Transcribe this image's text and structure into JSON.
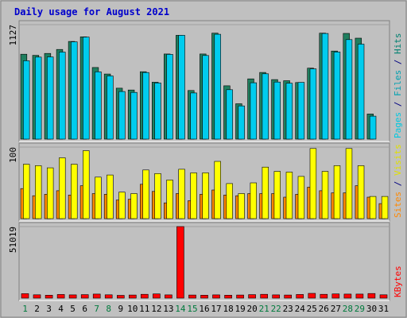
{
  "chart_data": {
    "type": "bar",
    "title": "Daily usage for August 2021",
    "categories": [
      "1",
      "2",
      "3",
      "4",
      "5",
      "6",
      "7",
      "8",
      "9",
      "10",
      "11",
      "12",
      "13",
      "14",
      "15",
      "16",
      "17",
      "18",
      "19",
      "20",
      "21",
      "22",
      "23",
      "24",
      "25",
      "26",
      "27",
      "28",
      "29",
      "30",
      "31"
    ],
    "weekend_days": [
      "1",
      "7",
      "8",
      "14",
      "15",
      "21",
      "22",
      "28",
      "29"
    ],
    "panels": [
      {
        "id": "hits",
        "ymax_label": "1127",
        "ylim": [
          0,
          1127
        ],
        "right_label_parts": [
          {
            "text": "Pages",
            "color": "#00c8e0"
          },
          {
            "text": " / ",
            "color": "#000080"
          },
          {
            "text": "Files",
            "color": "#00a0b0"
          },
          {
            "text": " / ",
            "color": "#000080"
          },
          {
            "text": "Hits",
            "color": "#008070"
          }
        ],
        "series": [
          {
            "name": "Hits",
            "color": "#1f7f5f",
            "values": [
              836,
              825,
              844,
              883,
              962,
              1007,
              705,
              641,
              502,
              484,
              664,
              560,
              838,
              1022,
              479,
              838,
              1043,
              525,
              348,
              593,
              657,
              586,
              575,
              557,
              699,
              1043,
              867,
              1041,
              994,
              247,
              0
            ]
          },
          {
            "name": "Files",
            "color": "#00ccee",
            "values": [
              772,
              808,
              809,
              857,
              958,
              1005,
              663,
              622,
              469,
              460,
              656,
              553,
              834,
              1022,
              455,
              823,
              1032,
              487,
              327,
              555,
              643,
              562,
              550,
              559,
              692,
              1040,
              858,
              980,
              935,
              226,
              0
            ]
          }
        ]
      },
      {
        "id": "visits",
        "ymax_label": "100",
        "ylim": [
          0,
          100
        ],
        "right_label_parts": [
          {
            "text": "Sites",
            "color": "#ff8800"
          },
          {
            "text": " / ",
            "color": "#000080"
          },
          {
            "text": "Visits",
            "color": "#e0e000"
          }
        ],
        "series": [
          {
            "name": "Sites",
            "color": "#ff8800",
            "values": [
              42,
              32,
              34,
              39,
              33,
              46,
              35,
              34,
              26,
              27,
              48,
              38,
              22,
              35,
              25,
              34,
              40,
              33,
              32,
              35,
              35,
              35,
              30,
              34,
              44,
              39,
              36,
              36,
              46,
              30,
              21
            ]
          },
          {
            "name": "Visits",
            "color": "#ffff00",
            "values": [
              76,
              74,
              71,
              85,
              76,
              95,
              58,
              61,
              37,
              35,
              68,
              63,
              54,
              69,
              64,
              64,
              80,
              49,
              35,
              50,
              72,
              66,
              65,
              59,
              98,
              66,
              74,
              98,
              74,
              31,
              31
            ]
          }
        ]
      },
      {
        "id": "kbytes",
        "ymax_label": "51019",
        "ylim": [
          0,
          51019
        ],
        "right_label_parts": [
          {
            "text": "KBytes",
            "color": "#ff0000"
          }
        ],
        "series": [
          {
            "name": "KBytes",
            "color": "#ff0000",
            "values": [
              3200,
              2400,
              2100,
              2600,
              2300,
              2500,
              2900,
              2400,
              2000,
              2200,
              2700,
              3000,
              2300,
              51019,
              2200,
              2100,
              2300,
              2100,
              2200,
              2500,
              2700,
              2300,
              2200,
              2600,
              3400,
              2700,
              3000,
              2900,
              2900,
              3300,
              2400
            ]
          }
        ]
      }
    ]
  }
}
